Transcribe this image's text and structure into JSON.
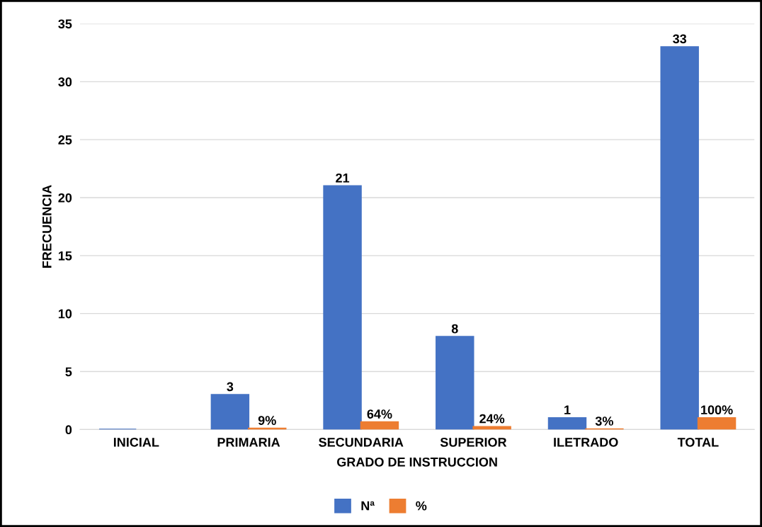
{
  "chart_data": {
    "type": "bar",
    "xlabel": "GRADO DE INSTRUCCION",
    "ylabel": "FRECUENCIA",
    "categories": [
      "INICIAL",
      "PRIMARIA",
      "SECUNDARIA",
      "SUPERIOR",
      "ILETRADO",
      "TOTAL"
    ],
    "series": [
      {
        "name": "Nª",
        "color": "#4472c4",
        "values": [
          0,
          3,
          21,
          8,
          1,
          33
        ],
        "value_labels": [
          null,
          "3",
          "21",
          "8",
          "1",
          "33"
        ]
      },
      {
        "name": "%",
        "color": "#ed7d31",
        "values": [
          null,
          0.09,
          0.64,
          0.24,
          0.03,
          1.0
        ],
        "value_labels": [
          null,
          "9%",
          "64%",
          "24%",
          "3%",
          "100%"
        ]
      }
    ],
    "ylim": [
      0,
      35
    ],
    "yticks": [
      0,
      5,
      10,
      15,
      20,
      25,
      30,
      35
    ],
    "grid": "y",
    "legend": "bottom"
  }
}
